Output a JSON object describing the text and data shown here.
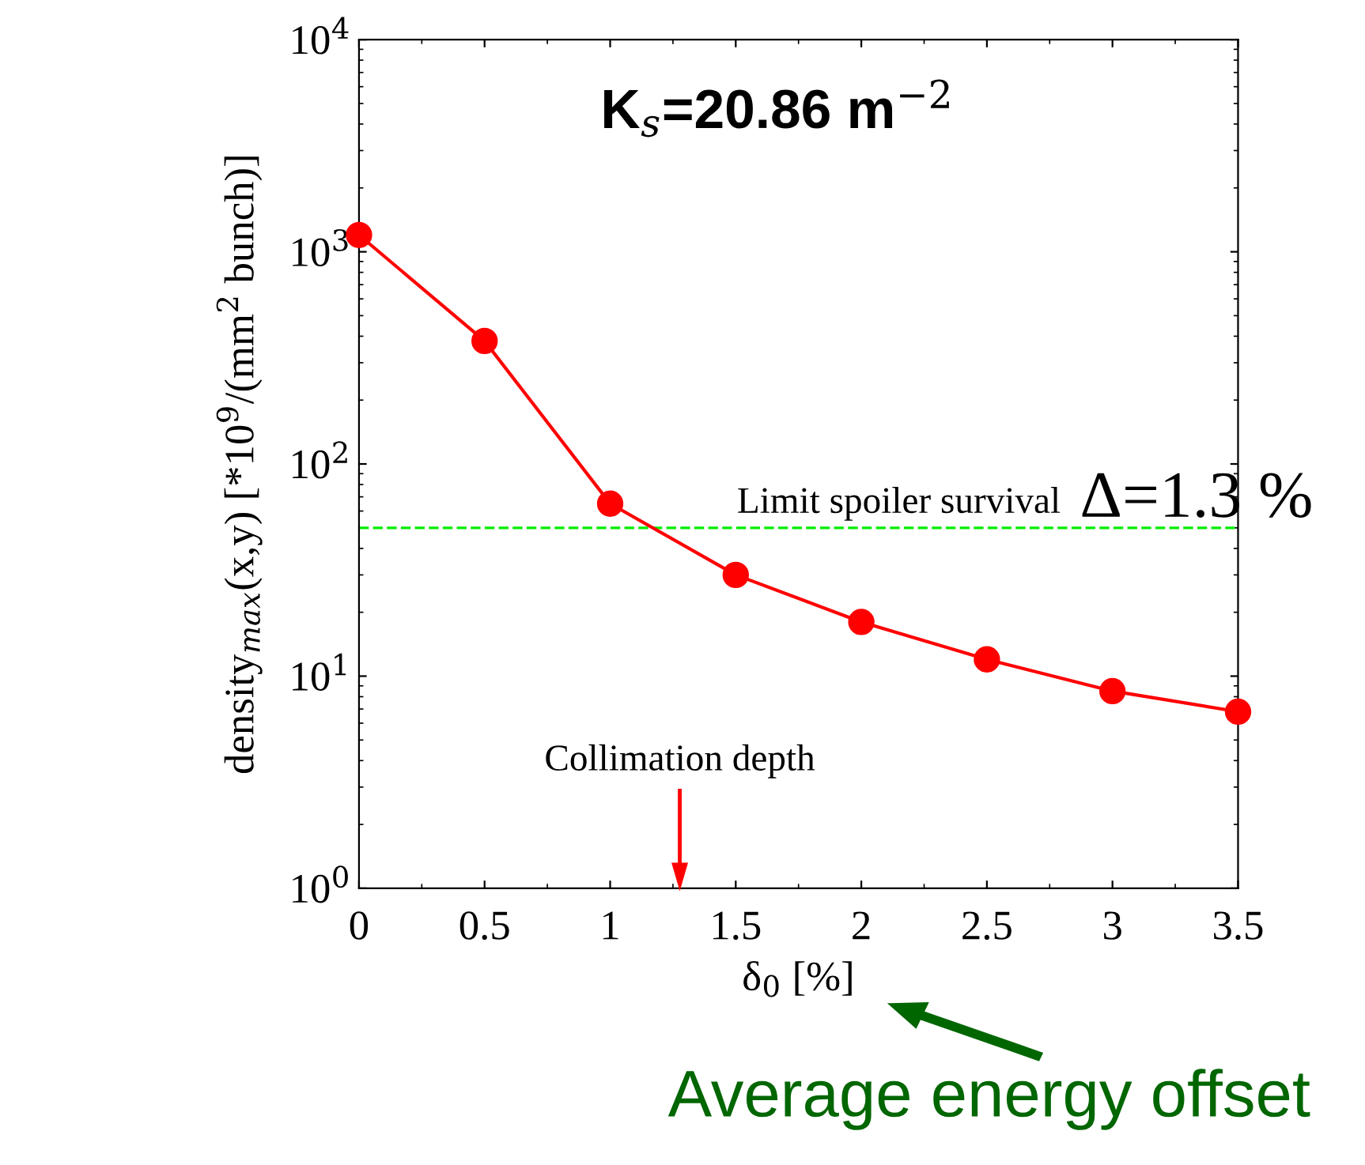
{
  "chart_data": {
    "type": "line",
    "x": [
      0,
      0.5,
      1,
      1.5,
      2,
      2.5,
      3,
      3.5
    ],
    "series": [
      {
        "color": "#ff0000",
        "values": [
          1200,
          380,
          65,
          30,
          18,
          12,
          8.5,
          6.8
        ]
      }
    ],
    "marker": "circle",
    "line_style": "solid",
    "log": "y",
    "grid": false,
    "xlim": [
      0,
      3.5
    ],
    "xticks": [
      0,
      0.5,
      1,
      1.5,
      2,
      2.5,
      3,
      3.5
    ],
    "ylim": [
      1,
      10000
    ],
    "yticks": [
      {
        "value": 1,
        "label": "10$^{0}$"
      },
      {
        "value": 10,
        "label": "10$^{1}$"
      },
      {
        "value": 100,
        "label": "10$^{2}$"
      },
      {
        "value": 1000,
        "label": "10$^{3}$"
      },
      {
        "value": 10000,
        "label": "10$^{4}$"
      }
    ],
    "xlabel": "δ$_{0}$ [%]",
    "ylabel": "density$_{max}$(x,y) [*10$^{9}$/(mm$^{2}$ bunch)]",
    "ref_lines": [
      {
        "axis": "y",
        "value": 50,
        "label": "Limit spoiler survival",
        "color": "#00ee00",
        "line_style": "dashed"
      }
    ],
    "annotations": [
      "K$_{s}$=20.86 m$^{−2}$",
      "Δ=1.3 %",
      "Collimation depth",
      "Average energy offset"
    ]
  }
}
